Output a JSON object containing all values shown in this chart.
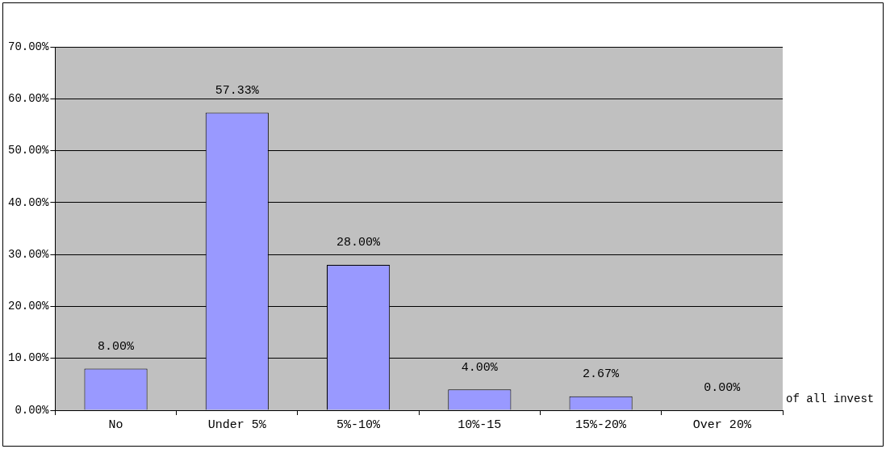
{
  "chart_data": {
    "type": "bar",
    "xlabel": "of all invest",
    "categories": [
      "No",
      "Under 5%",
      "5%-10%",
      "10%-15",
      "15%-20%",
      "Over 20%"
    ],
    "values": [
      8,
      57.33,
      28,
      4,
      2.67,
      0
    ],
    "value_labels": [
      "8.00%",
      "57.33%",
      "28.00%",
      "4.00%",
      "2.67%",
      "0.00%"
    ],
    "color": "#9999ff",
    "ylim": [
      0,
      70
    ],
    "yticks": [
      {
        "value": 0,
        "label": "0.00%"
      },
      {
        "value": 10,
        "label": "10.00%"
      },
      {
        "value": 20,
        "label": "20.00%"
      },
      {
        "value": 30,
        "label": "30.00%"
      },
      {
        "value": 40,
        "label": "40.00%"
      },
      {
        "value": 50,
        "label": "50.00%"
      },
      {
        "value": 60,
        "label": "60.00%"
      },
      {
        "value": 70,
        "label": "70.00%"
      }
    ],
    "grid": "y",
    "legend": false
  }
}
